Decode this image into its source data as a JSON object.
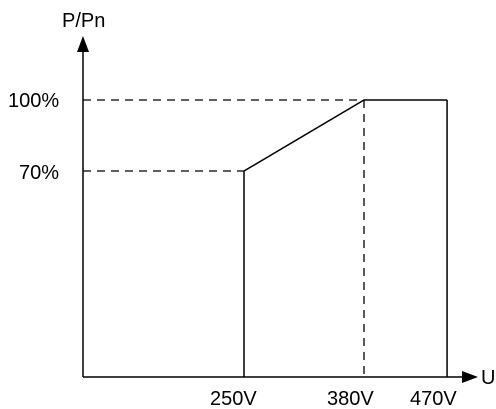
{
  "chart_data": {
    "type": "line",
    "title": "",
    "xlabel": "U",
    "ylabel": "P/Pn",
    "x_ticks": [
      {
        "value": 250,
        "label": "250V"
      },
      {
        "value": 380,
        "label": "380V"
      },
      {
        "value": 470,
        "label": "470V"
      }
    ],
    "y_ticks": [
      {
        "value": 70,
        "label": "70%"
      },
      {
        "value": 100,
        "label": "100%"
      }
    ],
    "series": [
      {
        "x": [
          250,
          250,
          380,
          470,
          470
        ],
        "y": [
          0,
          70,
          100,
          100,
          0
        ]
      }
    ],
    "reference_lines": [
      {
        "type": "horizontal",
        "y": 100,
        "style": "dashed"
      },
      {
        "type": "horizontal",
        "y": 70,
        "style": "dashed"
      },
      {
        "type": "vertical",
        "x": 380,
        "style": "dashed"
      }
    ],
    "colors": {
      "line": "#000000",
      "axis": "#000000"
    },
    "grid": false,
    "legend": "none"
  }
}
